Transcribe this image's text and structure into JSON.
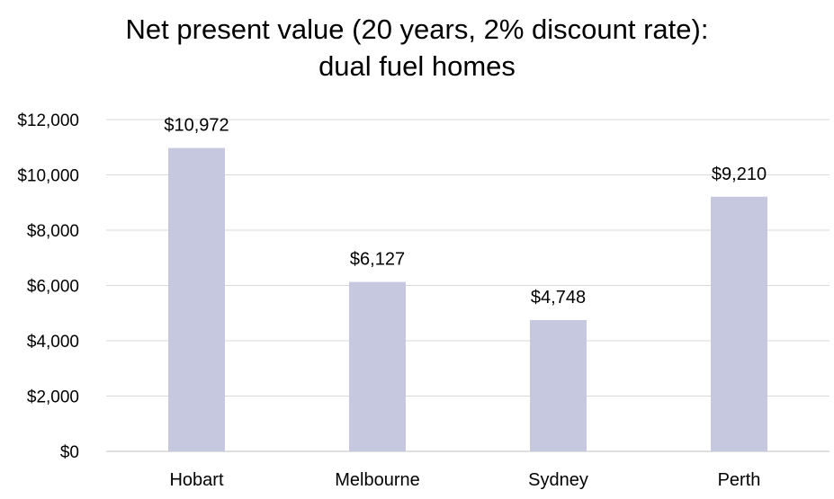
{
  "chart_data": {
    "type": "bar",
    "title_lines": [
      "Net present value (20 years, 2% discount rate):",
      "dual fuel homes"
    ],
    "categories": [
      "Hobart",
      "Melbourne",
      "Sydney",
      "Perth"
    ],
    "values": [
      10972,
      6127,
      4748,
      9210
    ],
    "data_labels": [
      "$10,972",
      "$6,127",
      "$4,748",
      "$9,210"
    ],
    "y_ticks": [
      0,
      2000,
      4000,
      6000,
      8000,
      10000,
      12000
    ],
    "y_tick_labels": [
      "$0",
      "$2,000",
      "$4,000",
      "$6,000",
      "$8,000",
      "$10,000",
      "$12,000"
    ],
    "ylim": [
      0,
      12000
    ],
    "grid": true,
    "legend": "none",
    "colors": {
      "bar": "#c5c8df",
      "grid": "#d9d9d9",
      "axis": "#bfbfbf",
      "text": "#000000"
    }
  }
}
